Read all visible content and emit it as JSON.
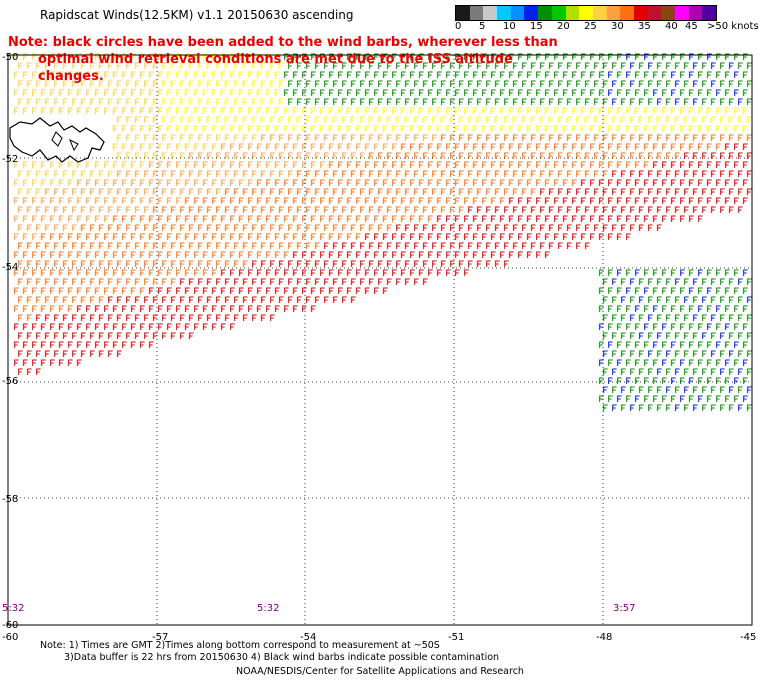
{
  "title": "Rapidscat Winds(12.5KM) v1.1 20150630 ascending",
  "legend": {
    "labels": [
      "0",
      "5",
      "10",
      "15",
      "20",
      "25",
      "30",
      "35",
      "40",
      "45",
      ">50 knots"
    ],
    "colors": [
      "#1a1a1a",
      "#7a7a7a",
      "#c8c8c8",
      "#00c8ff",
      "#0090ff",
      "#0020f0",
      "#009000",
      "#00c800",
      "#b0e000",
      "#ffff00",
      "#ffd040",
      "#ffa040",
      "#ff7010",
      "#e00000",
      "#c01030",
      "#8b4513",
      "#ff00ff",
      "#b000b0",
      "#5000a0"
    ]
  },
  "note": {
    "line1": "Note: black circles have been added to the wind barbs, wherever less than",
    "line2": "optimal wind retrieval conditions are met due to the ISS altitude changes."
  },
  "axes": {
    "lon_labels": [
      "-60",
      "-57",
      "-54",
      "-51",
      "-48",
      "-45"
    ],
    "lat_labels": [
      "-50",
      "-52",
      "-54",
      "-56",
      "-58",
      "-60"
    ]
  },
  "times": [
    "5:32",
    "5:32",
    "3:57"
  ],
  "footer": {
    "line1": "Note: 1) Times are GMT 2)Times along bottom correspond to measurement at ~50S",
    "line2": "3)Data buffer is 22 hrs from 20150630 4) Black wind barbs indicate possible contamination",
    "credit": "NOAA/NESDIS/Center for Satellite Applications and Research"
  }
}
